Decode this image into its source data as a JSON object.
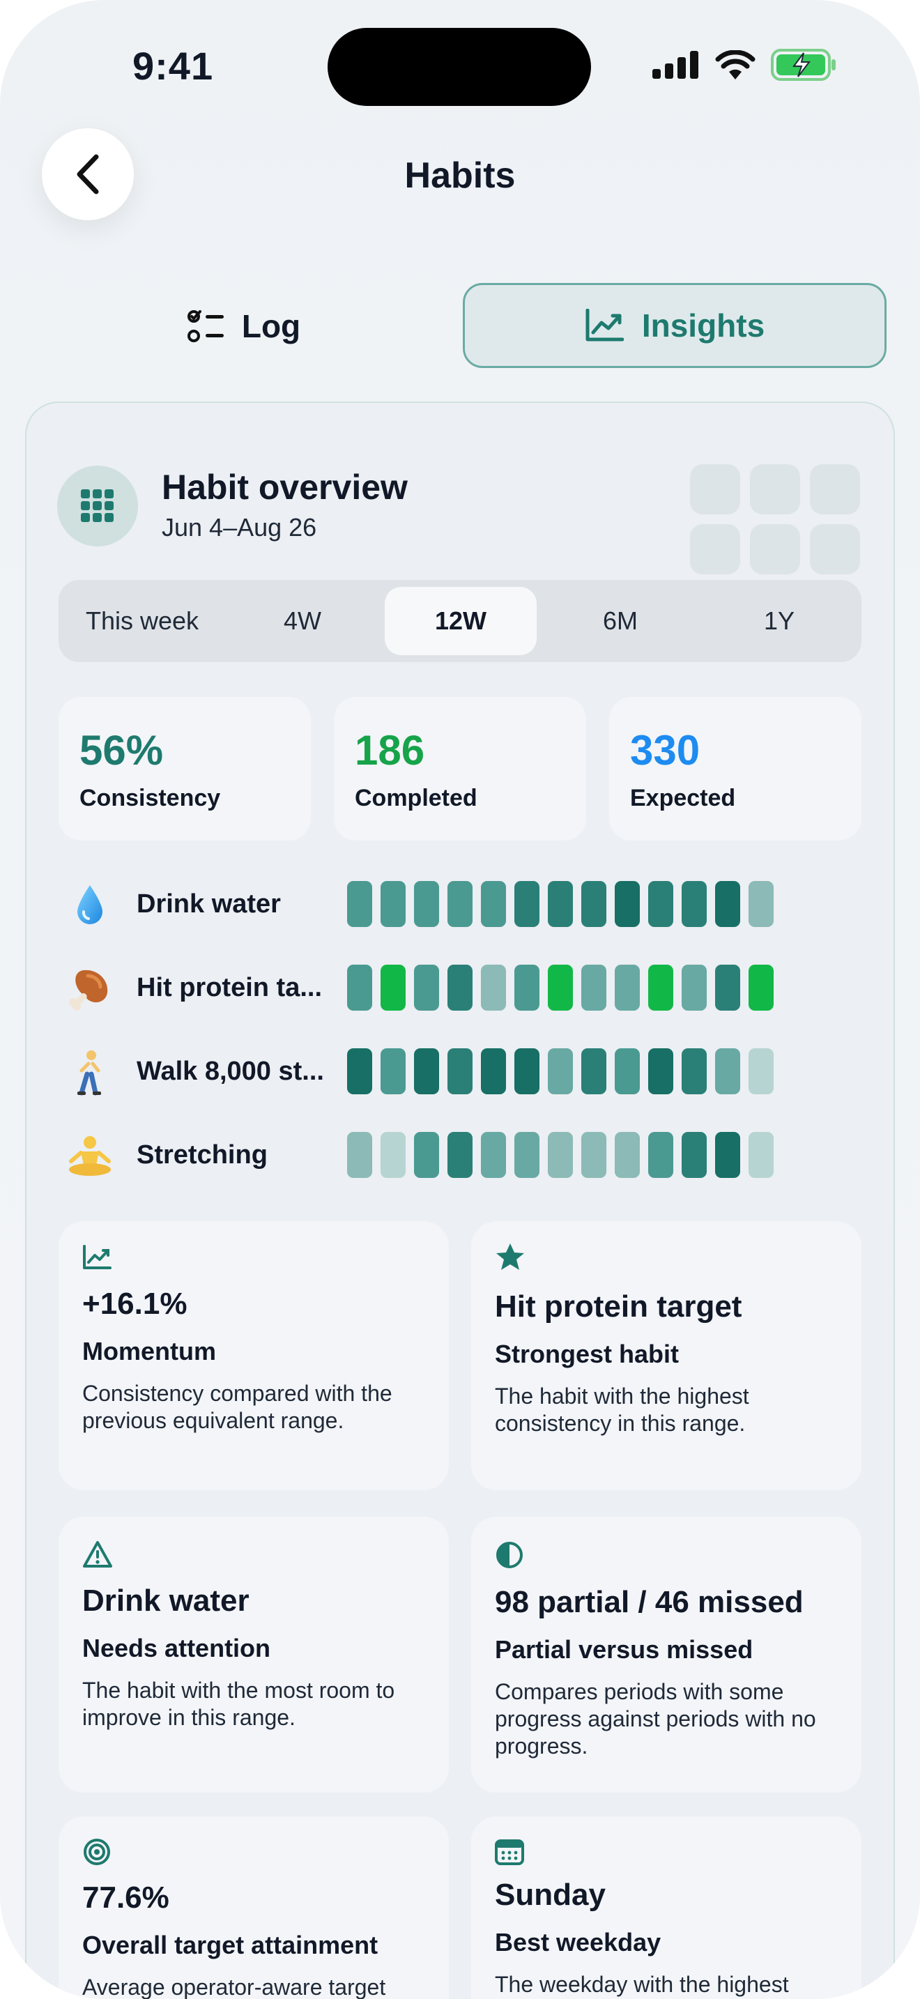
{
  "status_bar": {
    "time": "9:41"
  },
  "header": {
    "title": "Habits"
  },
  "segments": {
    "log": "Log",
    "insights": "Insights"
  },
  "overview": {
    "title": "Habit overview",
    "range": "Jun 4–Aug 26"
  },
  "range_options": [
    "This week",
    "4W",
    "12W",
    "6M",
    "1Y"
  ],
  "selected_range": "12W",
  "stats": [
    {
      "value": "56%",
      "label": "Consistency",
      "color": "#1e7a6e"
    },
    {
      "value": "186",
      "label": "Completed",
      "color": "#16a34a"
    },
    {
      "value": "330",
      "label": "Expected",
      "color": "#1d8bf0"
    }
  ],
  "colors": {
    "accent": "#1e7a6e",
    "success": "#16a34a",
    "info": "#1d8bf0",
    "cell_levels": [
      "#b6d4d2",
      "#8cbab6",
      "#68a9a3",
      "#4a9a92",
      "#2a8077",
      "#176f65"
    ],
    "cell_full": "#12b847"
  },
  "habits": [
    {
      "icon": "droplet-icon",
      "name": "Drink water",
      "levels": [
        3,
        3,
        3,
        3,
        3,
        4,
        4,
        4,
        5,
        4,
        4,
        5,
        1
      ]
    },
    {
      "icon": "poultry-leg-icon",
      "name": "Hit protein ta...",
      "levels": [
        3,
        "full",
        3,
        4,
        1,
        3,
        "full",
        2,
        2,
        "full",
        2,
        4,
        "full"
      ]
    },
    {
      "icon": "person-walking-icon",
      "name": "Walk 8,000 st...",
      "levels": [
        5,
        3,
        5,
        4,
        5,
        5,
        2,
        4,
        3,
        5,
        4,
        2,
        0
      ]
    },
    {
      "icon": "person-lotus-icon",
      "name": "Stretching",
      "levels": [
        1,
        0,
        3,
        4,
        2,
        2,
        1,
        1,
        1,
        3,
        4,
        5,
        0
      ]
    }
  ],
  "insights": [
    {
      "icon": "trend-chart-icon",
      "value": "+16.1%",
      "title": "Momentum",
      "description": "Consistency compared with the previous equivalent range."
    },
    {
      "icon": "star-icon",
      "value": "Hit protein target",
      "title": "Strongest habit",
      "description": "The habit with the highest consistency in this range."
    },
    {
      "icon": "warning-icon",
      "value": "Drink water",
      "title": "Needs attention",
      "description": "The habit with the most room to improve in this range."
    },
    {
      "icon": "half-circle-icon",
      "value": "98 partial / 46 missed",
      "title": "Partial versus missed",
      "description": "Compares periods with some progress against periods with no progress."
    },
    {
      "icon": "target-icon",
      "value": "77.6%",
      "title": "Overall target attainment",
      "description": "Average operator-aware target"
    },
    {
      "icon": "calendar-icon",
      "value": "Sunday",
      "title": "Best weekday",
      "description": "The weekday with the highest"
    }
  ]
}
